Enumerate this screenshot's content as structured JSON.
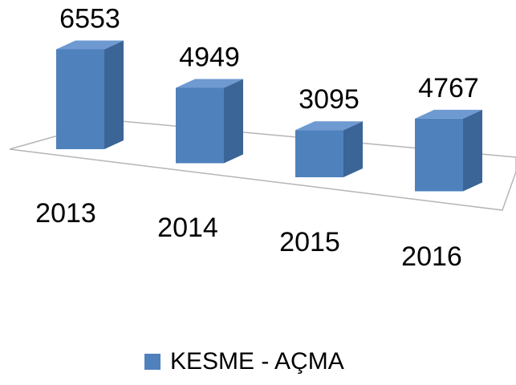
{
  "chart_data": {
    "type": "bar3d",
    "categories": [
      "2013",
      "2014",
      "2015",
      "2016"
    ],
    "series": [
      {
        "name": "KESME - AÇMA",
        "color": "#4f81bd",
        "values": [
          6553,
          4949,
          3095,
          4767
        ]
      }
    ]
  }
}
